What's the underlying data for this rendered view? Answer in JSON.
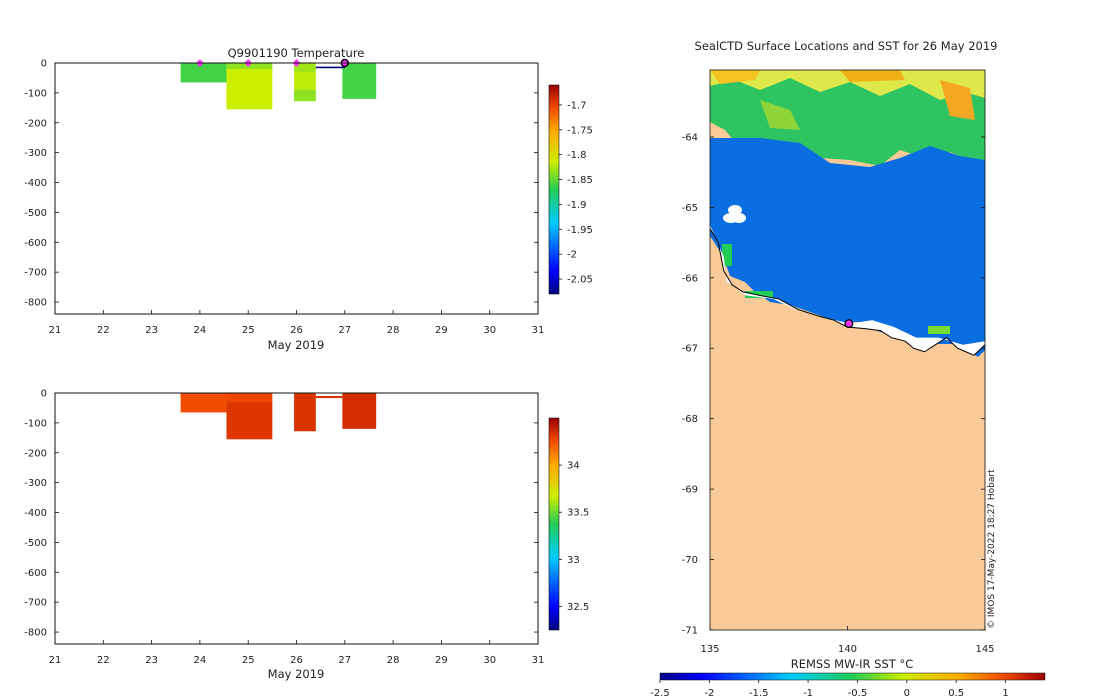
{
  "chart_data": [
    {
      "type": "heatmap",
      "title": "Q9901190  Temperature",
      "xlabel": "May 2019",
      "ylabel": "",
      "x_ticks": [
        21,
        22,
        23,
        24,
        25,
        26,
        27,
        28,
        29,
        30,
        31
      ],
      "y_ticks": [
        0,
        -100,
        -200,
        -300,
        -400,
        -500,
        -600,
        -700,
        -800
      ],
      "xlim": [
        21,
        31
      ],
      "ylim": [
        -840,
        0
      ],
      "colorbar": {
        "ticks": [
          -1.7,
          -1.75,
          -1.8,
          -1.85,
          -1.9,
          -1.95,
          -2,
          -2.05
        ],
        "range": [
          -2.08,
          -1.66
        ]
      },
      "profiles": [
        {
          "x0": 23.6,
          "x1": 24.55,
          "bands": [
            {
              "top": 0,
              "bottom": -65,
              "value": -1.86
            }
          ]
        },
        {
          "x0": 24.55,
          "x1": 25.5,
          "bands": [
            {
              "top": 0,
              "bottom": -20,
              "value": -1.835
            },
            {
              "top": -20,
              "bottom": -155,
              "value": -1.815
            }
          ]
        },
        {
          "x0": 25.95,
          "x1": 26.4,
          "bands": [
            {
              "top": 0,
              "bottom": -30,
              "value": -1.83
            },
            {
              "top": -30,
              "bottom": -90,
              "value": -1.82
            },
            {
              "top": -90,
              "bottom": -128,
              "value": -1.835
            }
          ]
        },
        {
          "x0": 26.95,
          "x1": 27.65,
          "bands": [
            {
              "top": 0,
              "bottom": -120,
              "value": -1.86
            }
          ]
        }
      ],
      "markers": [
        24.0,
        25.0,
        26.0
      ],
      "track": {
        "x0": 26.4,
        "x1": 27.0,
        "depth": -15
      },
      "current_position": 27.0
    },
    {
      "type": "heatmap",
      "title": "",
      "xlabel": "May 2019",
      "ylabel": "",
      "x_ticks": [
        21,
        22,
        23,
        24,
        25,
        26,
        27,
        28,
        29,
        30,
        31
      ],
      "y_ticks": [
        0,
        -100,
        -200,
        -300,
        -400,
        -500,
        -600,
        -700,
        -800
      ],
      "xlim": [
        21,
        31
      ],
      "ylim": [
        -840,
        0
      ],
      "colorbar": {
        "ticks": [
          34,
          33.5,
          33,
          32.5
        ],
        "range": [
          32.25,
          34.5
        ]
      },
      "profiles": [
        {
          "x0": 23.6,
          "x1": 24.55,
          "bands": [
            {
              "top": 0,
              "bottom": -65,
              "value": 34.25
            }
          ]
        },
        {
          "x0": 24.55,
          "x1": 25.5,
          "bands": [
            {
              "top": 0,
              "bottom": -30,
              "value": 34.27
            },
            {
              "top": -30,
              "bottom": -155,
              "value": 34.32
            }
          ]
        },
        {
          "x0": 25.95,
          "x1": 26.4,
          "bands": [
            {
              "top": 0,
              "bottom": -128,
              "value": 34.33
            }
          ]
        },
        {
          "x0": 26.4,
          "x1": 26.95,
          "bands": [
            {
              "top": -10,
              "bottom": -17,
              "value": 34.33
            }
          ]
        },
        {
          "x0": 26.95,
          "x1": 27.65,
          "bands": [
            {
              "top": 0,
              "bottom": -120,
              "value": 34.35
            }
          ]
        }
      ]
    },
    {
      "type": "map",
      "title": "SealCTD Surface Locations and SST for 26 May 2019",
      "colorbar_label": "REMSS MW-IR SST °C",
      "colorbar_ticks": [
        -2.5,
        -2,
        -1.5,
        -1,
        -0.5,
        0,
        0.5,
        1
      ],
      "colorbar_range": [
        -2.5,
        1.4
      ],
      "lon_ticks": [
        135,
        140,
        145
      ],
      "lat_ticks": [
        -64,
        -65,
        -66,
        -67,
        -68,
        -69,
        -70,
        -71
      ],
      "lon_range": [
        135,
        145
      ],
      "lat_range": [
        -71,
        -63.05
      ],
      "coast": [
        [
          135,
          -65.3
        ],
        [
          135.3,
          -65.5
        ],
        [
          135.5,
          -65.9
        ],
        [
          135.8,
          -66.1
        ],
        [
          136.2,
          -66.2
        ],
        [
          136.8,
          -66.25
        ],
        [
          137.5,
          -66.3
        ],
        [
          138.2,
          -66.45
        ],
        [
          139,
          -66.55
        ],
        [
          139.5,
          -66.6
        ],
        [
          140,
          -66.7
        ],
        [
          140.6,
          -66.72
        ],
        [
          141.2,
          -66.75
        ],
        [
          141.6,
          -66.85
        ],
        [
          142.1,
          -66.9
        ],
        [
          142.4,
          -67.0
        ],
        [
          142.8,
          -67.05
        ],
        [
          143.2,
          -66.95
        ],
        [
          143.6,
          -66.85
        ],
        [
          144,
          -67.0
        ],
        [
          144.3,
          -67.05
        ],
        [
          144.6,
          -67.1
        ],
        [
          145,
          -66.95
        ]
      ],
      "ice_edge": [
        [
          135,
          -65.25
        ],
        [
          135.5,
          -65.7
        ],
        [
          135.6,
          -66.05
        ],
        [
          136.3,
          -66.25
        ],
        [
          137.3,
          -66.3
        ],
        [
          138.1,
          -66.45
        ],
        [
          139,
          -66.55
        ],
        [
          140.1,
          -66.65
        ],
        [
          140.9,
          -66.6
        ],
        [
          141.7,
          -66.7
        ],
        [
          142.5,
          -66.85
        ],
        [
          143.3,
          -66.85
        ],
        [
          144.2,
          -66.95
        ],
        [
          145,
          -66.9
        ]
      ],
      "ice_patch": {
        "lon": 135.9,
        "lat": -65.1
      },
      "seal_position": {
        "lon": 140.05,
        "lat": -66.65
      },
      "credit": "© IMOS 17-May-2022 18:27 Hobart"
    }
  ]
}
